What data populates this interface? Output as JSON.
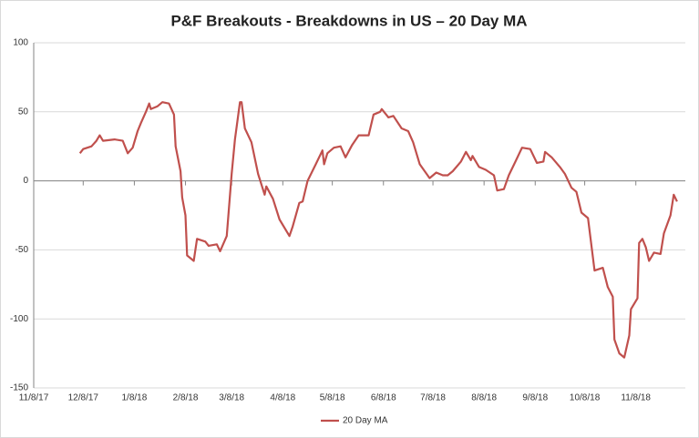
{
  "chart_data": {
    "type": "line",
    "title": "P&F Breakouts - Breakdowns in US – 20 Day MA",
    "x": [
      "12/6/17",
      "12/8/17",
      "12/13/17",
      "12/16/17",
      "12/18/17",
      "12/20/17",
      "12/27/17",
      "1/1/18",
      "1/4/18",
      "1/7/18",
      "1/10/18",
      "1/12/18",
      "1/15/18",
      "1/17/18",
      "1/18/18",
      "1/22/18",
      "1/25/18",
      "1/29/18",
      "2/1/18",
      "2/2/18",
      "2/5/18",
      "2/6/18",
      "2/8/18",
      "2/9/18",
      "2/13/18",
      "2/15/18",
      "2/20/18",
      "2/22/18",
      "2/27/18",
      "3/1/18",
      "3/5/18",
      "3/8/18",
      "3/10/18",
      "3/13/18",
      "3/14/18",
      "3/16/18",
      "3/20/18",
      "3/24/18",
      "3/28/18",
      "3/29/18",
      "4/2/18",
      "4/6/18",
      "4/12/18",
      "4/14/18",
      "4/18/18",
      "4/20/18",
      "4/23/18",
      "4/28/18",
      "5/2/18",
      "5/3/18",
      "5/5/18",
      "5/9/18",
      "5/13/18",
      "5/16/18",
      "5/20/18",
      "5/24/18",
      "5/30/18",
      "6/2/18",
      "6/6/18",
      "6/7/18",
      "6/11/18",
      "6/14/18",
      "6/19/18",
      "6/23/18",
      "6/26/18",
      "6/30/18",
      "7/6/18",
      "7/10/18",
      "7/14/18",
      "7/17/18",
      "7/20/18",
      "7/25/18",
      "7/28/18",
      "7/31/18",
      "8/1/18",
      "8/5/18",
      "8/9/18",
      "8/14/18",
      "8/16/18",
      "8/20/18",
      "8/23/18",
      "8/27/18",
      "8/31/18",
      "9/5/18",
      "9/9/18",
      "9/13/18",
      "9/14/18",
      "9/18/18",
      "9/23/18",
      "9/26/18",
      "9/30/18",
      "10/3/18",
      "10/6/18",
      "10/10/18",
      "10/14/18",
      "10/19/18",
      "10/22/18",
      "10/25/18",
      "10/26/18",
      "10/29/18",
      "11/1/18",
      "11/4/18",
      "11/5/18",
      "11/9/18",
      "11/10/18",
      "11/12/18",
      "11/14/18",
      "11/16/18",
      "11/19/18",
      "11/23/18",
      "11/25/18",
      "11/29/18",
      "12/1/18",
      "12/3/18"
    ],
    "series": [
      {
        "name": "20 Day MA",
        "color": "#c0504d",
        "values": [
          20,
          23,
          25,
          29,
          33,
          29,
          30,
          29,
          20,
          24,
          36,
          42,
          50,
          56,
          52,
          54,
          57,
          56,
          48,
          25,
          7,
          -12,
          -25,
          -54,
          -58,
          -42,
          -44,
          -47,
          -46,
          -51,
          -40,
          5,
          30,
          57,
          57,
          38,
          28,
          5,
          -10,
          -4,
          -13,
          -28,
          -40,
          -33,
          -16,
          -15,
          0,
          12,
          22,
          12,
          20,
          24,
          25,
          17,
          26,
          33,
          33,
          48,
          50,
          52,
          46,
          47,
          38,
          36,
          28,
          12,
          2,
          6,
          4,
          4,
          7,
          14,
          21,
          15,
          18,
          10,
          8,
          4,
          -7,
          -6,
          4,
          14,
          24,
          23,
          13,
          14,
          21,
          17,
          10,
          5,
          -5,
          -8,
          -23,
          -27,
          -65,
          -63,
          -77,
          -84,
          -115,
          -125,
          -128,
          -112,
          -93,
          -85,
          -45,
          -42,
          -48,
          -58,
          -52,
          -53,
          -38,
          -25,
          -10,
          -15
        ]
      }
    ],
    "xlim": [
      "11/8/17",
      "12/8/18"
    ],
    "xticks": [
      "11/8/17",
      "12/8/17",
      "1/8/18",
      "2/8/18",
      "3/8/18",
      "4/8/18",
      "5/8/18",
      "6/8/18",
      "7/8/18",
      "8/8/18",
      "9/8/18",
      "10/8/18",
      "11/8/18"
    ],
    "ylim": [
      -150,
      100
    ],
    "yticks": [
      -150,
      -100,
      -50,
      0,
      50,
      100
    ],
    "grid": true,
    "legend": "bottom"
  }
}
